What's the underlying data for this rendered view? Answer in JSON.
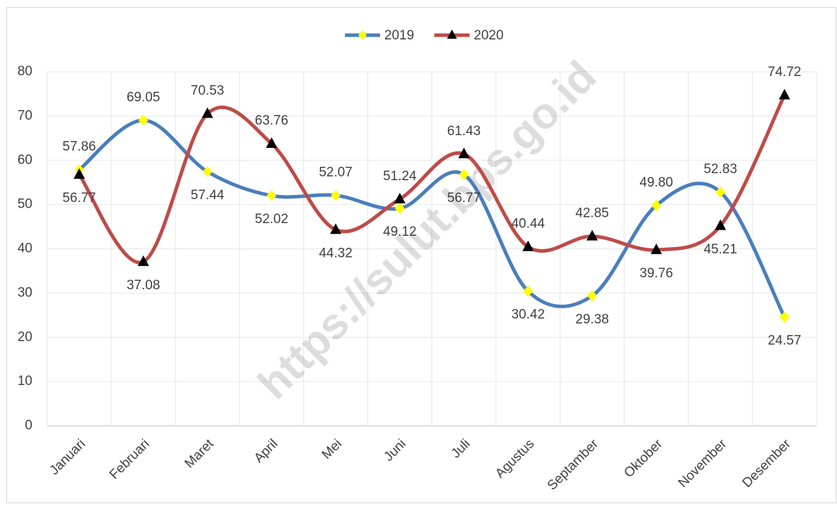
{
  "chart_data": {
    "type": "line",
    "categories": [
      "Januari",
      "Februari",
      "Maret",
      "April",
      "Mei",
      "Juni",
      "Juli",
      "Agustus",
      "Septamber",
      "Oktober",
      "November",
      "Desember"
    ],
    "series": [
      {
        "name": "2019",
        "color": "#4a7ebb",
        "marker": "diamond",
        "marker_color": "#ffff00",
        "values": [
          57.86,
          69.05,
          57.44,
          52.02,
          52.07,
          49.12,
          56.77,
          30.42,
          29.38,
          49.8,
          52.83,
          24.57
        ],
        "value_labels": [
          "57.86",
          "69.05",
          "57.44",
          "52.02",
          "52.07",
          "49.12",
          "56.77",
          "30.42",
          "29.38",
          "49.80",
          "52.83",
          "24.57"
        ]
      },
      {
        "name": "2020",
        "color": "#be4b48",
        "marker": "triangle",
        "marker_color": "#000000",
        "values": [
          56.77,
          37.08,
          70.53,
          63.76,
          44.32,
          51.24,
          61.43,
          40.44,
          42.85,
          39.76,
          45.21,
          74.72
        ],
        "value_labels": [
          "56.77",
          "37.08",
          "70.53",
          "63.76",
          "44.32",
          "51.24",
          "61.43",
          "40.44",
          "42.85",
          "39.76",
          "45.21",
          "74.72"
        ]
      }
    ],
    "ylim": [
      0,
      80
    ],
    "yticks": [
      0,
      10,
      20,
      30,
      40,
      50,
      60,
      70,
      80
    ],
    "grid": true,
    "smooth": true,
    "legend": "top",
    "watermark": "https://sulut.bps.go.id"
  }
}
